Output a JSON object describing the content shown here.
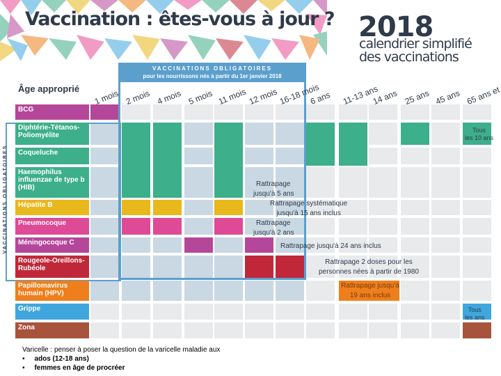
{
  "header": {
    "title": "Vaccination : êtes-vous à jour ?",
    "year": "2018",
    "subtitle_line1": "calendrier simplifié",
    "subtitle_line2": "des vaccinations"
  },
  "obligatoires": {
    "heading": "VACCINATIONS OBLIGATOIRES",
    "subheading": "pour les nourrissons nés à partir du 1er janvier 2018",
    "side_label": "VACCINATIONS OBLIGATOIRES"
  },
  "age_title": "Âge approprié",
  "columns": [
    "1 mois",
    "2 mois",
    "4 mois",
    "5 mois",
    "11 mois",
    "12 mois",
    "16-18 mois",
    "6 ans",
    "11-13 ans",
    "14 ans",
    "25 ans",
    "45 ans",
    "65 ans et +"
  ],
  "vaccines": [
    {
      "label": "BCG",
      "color": "#b5479b"
    },
    {
      "label": "Diphtérie-Tétanos-Poliomyélite",
      "color": "#3daf8a"
    },
    {
      "label": "Coqueluche",
      "color": "#3daf8a"
    },
    {
      "label": "Haemophilus influenzae de type b (HIB)",
      "color": "#3daf8a"
    },
    {
      "label": "Hépatite B",
      "color": "#e8b81c"
    },
    {
      "label": "Pneumocoque",
      "color": "#de4a95"
    },
    {
      "label": "Méningocoque C",
      "color": "#b5479b"
    },
    {
      "label": "Rougeole-Oreillons-Rubéole",
      "color": "#c0283a"
    },
    {
      "label": "Papillomavirus humain (HPV)",
      "color": "#ee7f1c"
    },
    {
      "label": "Grippe",
      "color": "#3fa7dd"
    },
    {
      "label": "Zona",
      "color": "#a8533c"
    }
  ],
  "annotations": {
    "tous_10": [
      "Tous",
      "les 10 ans"
    ],
    "rattrapage_hib": [
      "Rattrapage",
      "jusqu'à 5 ans"
    ],
    "rattrapage_hepb": [
      "Rattrapage systématique",
      "jusqu'à 15 ans inclus"
    ],
    "rattrapage_pneumo": [
      "Rattrapage",
      "jusqu'à 2 ans"
    ],
    "rattrapage_menc": "Rattrapage jusqu'à 24 ans inclus",
    "rattrapage_ror": [
      "Rattrapage 2 doses pour les",
      "personnes nées à partir de 1980"
    ],
    "rattrapage_hpv": [
      "Rattrapage jusqu'à",
      "19 ans inclus"
    ],
    "tous_ans": [
      "Tous",
      "les ans"
    ]
  },
  "note": {
    "text": "Varicelle : penser à poser la question de la varicelle maladie aux",
    "bullets": [
      "ados (12-18 ans)",
      "femmes en âge de procréer"
    ]
  }
}
